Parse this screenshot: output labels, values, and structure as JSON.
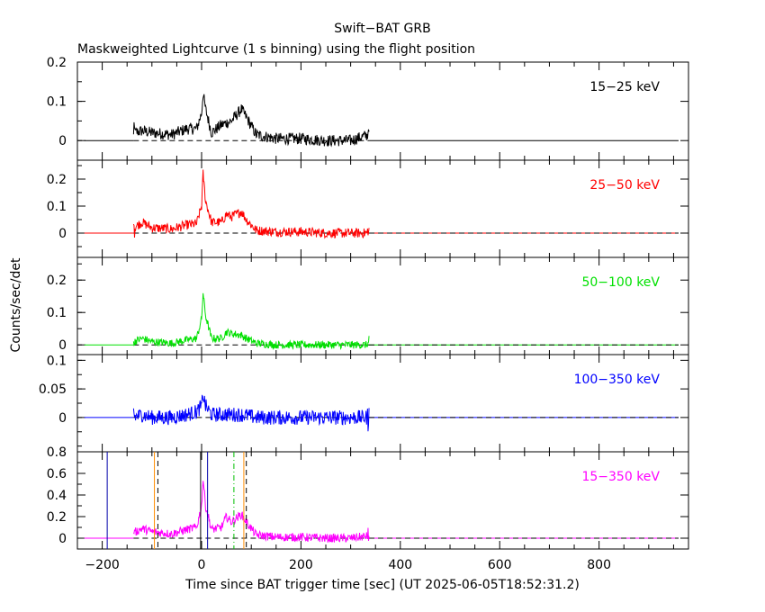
{
  "title": "Swift−BAT GRB",
  "subtitle": "Maskweighted Lightcurve (1 s binning) using the flight position",
  "xlabel": "Time since BAT trigger time [sec] (UT 2025-06-05T18:52:31.2)",
  "ylabel": "Counts/sec/det",
  "chart_data": [
    {
      "type": "line",
      "band": "15−25 keV",
      "color": "#000000",
      "xlim": [
        -250,
        980
      ],
      "ylim": [
        -0.05,
        0.2
      ],
      "xticks": [
        -200,
        0,
        200,
        400,
        600,
        800
      ],
      "yticks": [
        0,
        0.1,
        0.2
      ],
      "ytick_labels": [
        "0",
        "0.1",
        "0.2"
      ],
      "data_range": [
        -137,
        337
      ],
      "series": [
        {
          "x": [
            -137,
            -120,
            -100,
            -60,
            -30,
            -10,
            0,
            3,
            8,
            20,
            40,
            60,
            80,
            90,
            110,
            150,
            200,
            250,
            300,
            337
          ],
          "y": [
            0.02,
            0.025,
            0.02,
            0.015,
            0.03,
            0.03,
            0.07,
            0.12,
            0.08,
            0.02,
            0.04,
            0.05,
            0.08,
            0.06,
            0.015,
            0.005,
            0.005,
            0.0,
            0.0,
            0.015
          ],
          "noise": 0.015
        }
      ]
    },
    {
      "type": "line",
      "band": "25−50 keV",
      "color": "#ff0000",
      "xlim": [
        -250,
        980
      ],
      "ylim": [
        -0.09,
        0.27
      ],
      "xticks": [
        -200,
        0,
        200,
        400,
        600,
        800
      ],
      "yticks": [
        0,
        0.1,
        0.2
      ],
      "ytick_labels": [
        "0",
        "0.1",
        "0.2"
      ],
      "data_range": [
        -137,
        337
      ],
      "series": [
        {
          "x": [
            -137,
            -120,
            -100,
            -60,
            -30,
            -10,
            0,
            3,
            8,
            20,
            40,
            50,
            60,
            80,
            90,
            110,
            150,
            200,
            250,
            300,
            337
          ],
          "y": [
            0.02,
            0.04,
            0.02,
            0.015,
            0.03,
            0.035,
            0.1,
            0.22,
            0.12,
            0.04,
            0.04,
            0.07,
            0.06,
            0.08,
            0.05,
            0.01,
            0.005,
            0.005,
            0.0,
            0.0,
            0.0
          ],
          "noise": 0.018
        }
      ]
    },
    {
      "type": "line",
      "band": "50−100 keV",
      "color": "#00e000",
      "xlim": [
        -250,
        980
      ],
      "ylim": [
        -0.03,
        0.27
      ],
      "xticks": [
        -200,
        0,
        200,
        400,
        600,
        800
      ],
      "yticks": [
        0,
        0.1,
        0.2
      ],
      "ytick_labels": [
        "0",
        "0.1",
        "0.2"
      ],
      "data_range": [
        -137,
        337
      ],
      "series": [
        {
          "x": [
            -137,
            -120,
            -100,
            -60,
            -30,
            -10,
            0,
            3,
            8,
            20,
            40,
            50,
            60,
            80,
            90,
            110,
            150,
            200,
            250,
            300,
            337
          ],
          "y": [
            0.01,
            0.02,
            0.01,
            0.005,
            0.015,
            0.02,
            0.08,
            0.16,
            0.09,
            0.02,
            0.02,
            0.04,
            0.035,
            0.03,
            0.02,
            0.005,
            0.0,
            0.0,
            0.0,
            0.0,
            0.0
          ],
          "noise": 0.012
        }
      ]
    },
    {
      "type": "line",
      "band": "100−350 keV",
      "color": "#0000ff",
      "xlim": [
        -250,
        980
      ],
      "ylim": [
        -0.06,
        0.11
      ],
      "xticks": [
        -200,
        0,
        200,
        400,
        600,
        800
      ],
      "yticks": [
        0,
        0.05,
        0.1
      ],
      "ytick_labels": [
        "0",
        "0.05",
        "0.1"
      ],
      "data_range": [
        -137,
        337
      ],
      "series": [
        {
          "x": [
            -137,
            -120,
            -100,
            -60,
            -30,
            -10,
            0,
            3,
            8,
            20,
            40,
            80,
            110,
            150,
            200,
            250,
            300,
            337
          ],
          "y": [
            0.0,
            0.005,
            0.0,
            0.0,
            0.005,
            0.01,
            0.02,
            0.04,
            0.02,
            0.005,
            0.005,
            0.005,
            0.0,
            0.0,
            0.0,
            0.0,
            0.0,
            0.0
          ],
          "noise": 0.013
        }
      ]
    },
    {
      "type": "line",
      "band": "15−350 keV",
      "color": "#ff00ff",
      "xlim": [
        -250,
        980
      ],
      "ylim": [
        -0.1,
        0.8
      ],
      "xticks": [
        -200,
        0,
        200,
        400,
        600,
        800
      ],
      "yticks": [
        0,
        0.2,
        0.4,
        0.6,
        0.8
      ],
      "ytick_labels": [
        "0",
        "0.2",
        "0.4",
        "0.6",
        "0.8"
      ],
      "data_range": [
        -137,
        337
      ],
      "series": [
        {
          "x": [
            -137,
            -120,
            -100,
            -60,
            -30,
            -10,
            0,
            3,
            8,
            20,
            40,
            50,
            60,
            80,
            90,
            110,
            150,
            200,
            250,
            300,
            337
          ],
          "y": [
            0.05,
            0.09,
            0.06,
            0.04,
            0.08,
            0.1,
            0.3,
            0.55,
            0.3,
            0.08,
            0.1,
            0.2,
            0.15,
            0.22,
            0.15,
            0.03,
            0.01,
            0.01,
            0.0,
            0.0,
            0.02
          ],
          "noise": 0.04
        }
      ],
      "vlines": [
        {
          "x": -190,
          "color": "#0000aa",
          "dash": "solid"
        },
        {
          "x": -95,
          "color": "#ff8c00",
          "dash": "solid"
        },
        {
          "x": -88,
          "color": "#000000",
          "dash": "dash"
        },
        {
          "x": -2,
          "color": "#000000",
          "dash": "solid"
        },
        {
          "x": 12,
          "color": "#0000aa",
          "dash": "solid"
        },
        {
          "x": 65,
          "color": "#00c000",
          "dash": "dashdot"
        },
        {
          "x": 85,
          "color": "#ff8c00",
          "dash": "solid"
        },
        {
          "x": 90,
          "color": "#000000",
          "dash": "dash"
        }
      ]
    }
  ]
}
